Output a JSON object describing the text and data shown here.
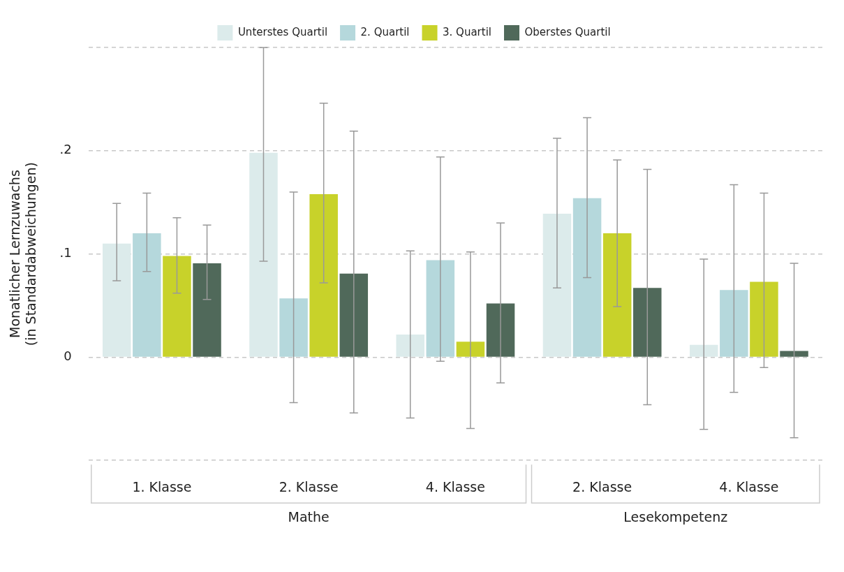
{
  "chart_data": {
    "type": "bar",
    "categories": [
      "1. Klasse",
      "2. Klasse",
      "4. Klasse",
      "2. Klasse",
      "4. Klasse"
    ],
    "ylabel": "Monatlicher Lernzuwachs\n(in Standardabweichungen)",
    "ylim": [
      -0.1,
      0.3
    ],
    "yticks": [
      {
        "value": -0.1,
        "label": null
      },
      {
        "value": 0,
        "label": "0"
      },
      {
        "value": 0.1,
        "label": ".1"
      },
      {
        "value": 0.2,
        "label": ".2"
      },
      {
        "value": 0.3,
        "label": null
      }
    ],
    "grid": "y",
    "legend": "top",
    "annotations": [
      "Mathe",
      "Lesekompetenz"
    ],
    "series": [
      {
        "name": "Unterstes Quartil",
        "color": "#dcebeb",
        "values": [
          0.11,
          0.198,
          0.022,
          0.139,
          0.012
        ],
        "errors": [
          [
            0.074,
            0.149
          ],
          [
            0.093,
            0.3
          ],
          [
            -0.059,
            0.103
          ],
          [
            0.067,
            0.212
          ],
          [
            -0.07,
            0.095
          ]
        ]
      },
      {
        "name": "2. Quartil",
        "color": "#b5d8dc",
        "values": [
          0.12,
          0.057,
          0.094,
          0.154,
          0.065
        ],
        "errors": [
          [
            0.083,
            0.159
          ],
          [
            -0.044,
            0.16
          ],
          [
            -0.004,
            0.194
          ],
          [
            0.077,
            0.232
          ],
          [
            -0.034,
            0.167
          ]
        ]
      },
      {
        "name": "3. Quartil",
        "color": "#c8d22a",
        "values": [
          0.098,
          0.158,
          0.015,
          0.12,
          0.073
        ],
        "errors": [
          [
            0.062,
            0.135
          ],
          [
            0.072,
            0.246
          ],
          [
            -0.069,
            0.102
          ],
          [
            0.049,
            0.191
          ],
          [
            -0.01,
            0.159
          ]
        ]
      },
      {
        "name": "Oberstes Quartil",
        "color": "#50695a",
        "values": [
          0.091,
          0.081,
          0.052,
          0.067,
          0.006
        ],
        "errors": [
          [
            0.056,
            0.128
          ],
          [
            -0.054,
            0.219
          ],
          [
            -0.025,
            0.13
          ],
          [
            -0.046,
            0.182
          ],
          [
            -0.078,
            0.091
          ]
        ]
      }
    ]
  }
}
